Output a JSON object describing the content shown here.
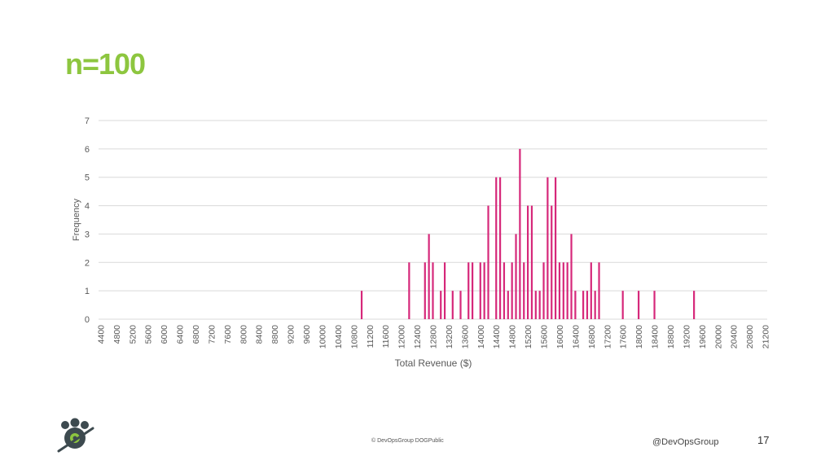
{
  "slide": {
    "title": "n=100",
    "copyright": "© DevOpsGroup DOGPublic",
    "handle": "@DevOpsGroup",
    "page_number": "17"
  },
  "colors": {
    "title": "#8dc63f",
    "bar": "#d6287a",
    "grid": "#d9d9d9",
    "axis_text": "#595959"
  },
  "chart_data": {
    "type": "bar",
    "title": "",
    "xlabel": "Total Revenue ($)",
    "ylabel": "Frequency",
    "ylim": [
      0,
      7
    ],
    "yticks": [
      0,
      1,
      2,
      3,
      4,
      5,
      6,
      7
    ],
    "bin_width": 100,
    "x_start": 4400,
    "x_end": 21300,
    "xtick_labels": [
      "4400",
      "4800",
      "5200",
      "5600",
      "6000",
      "6400",
      "6800",
      "7200",
      "7600",
      "8000",
      "8400",
      "8800",
      "9200",
      "9600",
      "10000",
      "10400",
      "10800",
      "11200",
      "11600",
      "12000",
      "12400",
      "12800",
      "13200",
      "13600",
      "14000",
      "14400",
      "14800",
      "15200",
      "15600",
      "16000",
      "16400",
      "16800",
      "17200",
      "17600",
      "18000",
      "18400",
      "18800",
      "19200",
      "19600",
      "20000",
      "20400",
      "20800",
      "21200"
    ],
    "bins": [
      {
        "x": 11000,
        "value": 1
      },
      {
        "x": 12200,
        "value": 2
      },
      {
        "x": 12600,
        "value": 2
      },
      {
        "x": 12700,
        "value": 3
      },
      {
        "x": 12800,
        "value": 2
      },
      {
        "x": 13000,
        "value": 1
      },
      {
        "x": 13100,
        "value": 2
      },
      {
        "x": 13300,
        "value": 1
      },
      {
        "x": 13500,
        "value": 1
      },
      {
        "x": 13700,
        "value": 2
      },
      {
        "x": 13800,
        "value": 2
      },
      {
        "x": 14000,
        "value": 2
      },
      {
        "x": 14100,
        "value": 2
      },
      {
        "x": 14200,
        "value": 4
      },
      {
        "x": 14400,
        "value": 5
      },
      {
        "x": 14500,
        "value": 5
      },
      {
        "x": 14600,
        "value": 2
      },
      {
        "x": 14700,
        "value": 1
      },
      {
        "x": 14800,
        "value": 2
      },
      {
        "x": 14900,
        "value": 3
      },
      {
        "x": 15000,
        "value": 6
      },
      {
        "x": 15100,
        "value": 2
      },
      {
        "x": 15200,
        "value": 4
      },
      {
        "x": 15300,
        "value": 4
      },
      {
        "x": 15400,
        "value": 1
      },
      {
        "x": 15500,
        "value": 1
      },
      {
        "x": 15600,
        "value": 2
      },
      {
        "x": 15700,
        "value": 5
      },
      {
        "x": 15800,
        "value": 4
      },
      {
        "x": 15900,
        "value": 5
      },
      {
        "x": 16000,
        "value": 2
      },
      {
        "x": 16100,
        "value": 2
      },
      {
        "x": 16200,
        "value": 2
      },
      {
        "x": 16300,
        "value": 3
      },
      {
        "x": 16400,
        "value": 1
      },
      {
        "x": 16600,
        "value": 1
      },
      {
        "x": 16700,
        "value": 1
      },
      {
        "x": 16800,
        "value": 2
      },
      {
        "x": 16900,
        "value": 1
      },
      {
        "x": 17000,
        "value": 2
      },
      {
        "x": 17600,
        "value": 1
      },
      {
        "x": 18000,
        "value": 1
      },
      {
        "x": 18400,
        "value": 1
      },
      {
        "x": 19400,
        "value": 1
      }
    ]
  }
}
